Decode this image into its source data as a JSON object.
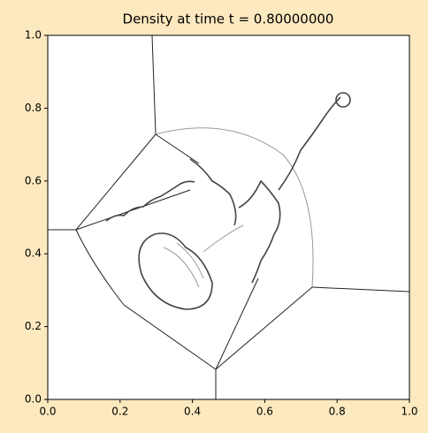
{
  "chart_data": {
    "type": "image",
    "title": "Density at time t =      0.80000000",
    "xlim": [
      0,
      1
    ],
    "ylim": [
      0,
      1
    ],
    "xticks": [
      {
        "value": 0,
        "label": "0.0"
      },
      {
        "value": 0.2,
        "label": "0.2"
      },
      {
        "value": 0.4,
        "label": "0.4"
      },
      {
        "value": 0.6,
        "label": "0.6"
      },
      {
        "value": 0.8,
        "label": "0.8"
      },
      {
        "value": 1,
        "label": "1.0"
      }
    ],
    "yticks": [
      {
        "value": 0,
        "label": "0.0"
      },
      {
        "value": 0.2,
        "label": "0.2"
      },
      {
        "value": 0.4,
        "label": "0.4"
      },
      {
        "value": 0.6,
        "label": "0.6"
      },
      {
        "value": 0.8,
        "label": "0.8"
      },
      {
        "value": 1,
        "label": "1.0"
      }
    ]
  }
}
